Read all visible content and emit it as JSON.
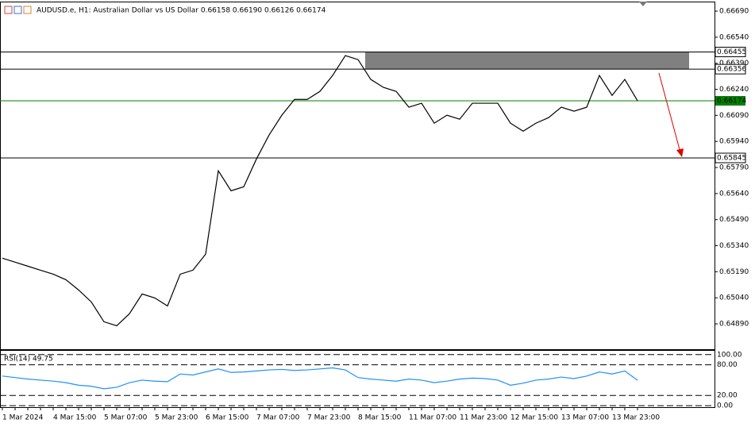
{
  "chart_data": [
    {
      "type": "line",
      "title": "AUDUSD.e, H1:  Australian Dollar vs US Dollar  0.66158 0.66190 0.66126 0.66174",
      "categories": [
        "1 Mar 2024",
        null,
        null,
        null,
        "4 Mar 15:00",
        null,
        null,
        null,
        "5 Mar 07:00",
        null,
        null,
        null,
        "5 Mar 23:00",
        null,
        null,
        null,
        "6 Mar 15:00",
        null,
        null,
        null,
        "7 Mar 07:00",
        null,
        null,
        null,
        "7 Mar 23:00",
        null,
        null,
        null,
        "8 Mar 15:00",
        null,
        null,
        null,
        "11 Mar 07:00",
        null,
        null,
        null,
        "11 Mar 23:00",
        null,
        null,
        null,
        "12 Mar 15:00",
        null,
        null,
        null,
        "13 Mar 07:00",
        null,
        null,
        null,
        "13 Mar 23:00",
        null,
        null
      ],
      "values": [
        0.65268,
        0.65245,
        0.65222,
        0.65199,
        0.65176,
        0.65144,
        0.65085,
        0.65016,
        0.64902,
        0.64879,
        0.64948,
        0.65062,
        0.65039,
        0.64993,
        0.65176,
        0.65199,
        0.65291,
        0.65771,
        0.65656,
        0.65679,
        0.65839,
        0.65977,
        0.66091,
        0.66182,
        0.66182,
        0.66228,
        0.6632,
        0.66434,
        0.66411,
        0.66297,
        0.66251,
        0.66228,
        0.66137,
        0.6616,
        0.66045,
        0.66091,
        0.66068,
        0.6616,
        0.6616,
        0.6616,
        0.66045,
        0.65999,
        0.66045,
        0.66077,
        0.66137,
        0.66114,
        0.66137,
        0.6632,
        0.66205,
        0.66297,
        0.66174
      ],
      "color": "#000000",
      "ylim": [
        0.64744,
        0.66745
      ],
      "yticks": [
        {
          "value": 0.6669,
          "label": "0.66690"
        },
        {
          "value": 0.6654,
          "label": "0.66540"
        },
        {
          "value": 0.6639,
          "label": "0.66390"
        },
        {
          "value": 0.6624,
          "label": "0.66240"
        },
        {
          "value": 0.6609,
          "label": "0.66090"
        },
        {
          "value": 0.6594,
          "label": "0.65940"
        },
        {
          "value": 0.6579,
          "label": "0.65790"
        },
        {
          "value": 0.6564,
          "label": "0.65640"
        },
        {
          "value": 0.6549,
          "label": "0.65490"
        },
        {
          "value": 0.6534,
          "label": "0.65340"
        },
        {
          "value": 0.6519,
          "label": "0.65190"
        },
        {
          "value": 0.6504,
          "label": "0.65040"
        },
        {
          "value": 0.6489,
          "label": "0.64890"
        }
      ],
      "levels": [
        {
          "value": 0.66455,
          "color": "#000000"
        },
        {
          "value": 0.66356,
          "color": "#000000"
        },
        {
          "value": 0.66174,
          "color": "#008000"
        },
        {
          "value": 0.65845,
          "color": "#000000"
        }
      ]
    },
    {
      "type": "line",
      "title": "RSI(14) 49.75",
      "values": [
        58,
        55,
        52,
        50,
        48,
        45,
        40,
        38,
        33,
        36,
        45,
        50,
        48,
        47,
        62,
        60,
        66,
        72,
        65,
        66,
        68,
        70,
        71,
        69,
        70,
        72,
        74,
        70,
        55,
        52,
        50,
        48,
        52,
        50,
        45,
        48,
        52,
        54,
        53,
        50,
        40,
        44,
        50,
        52,
        56,
        53,
        58,
        66,
        62,
        68,
        49.75
      ],
      "color": "#1e90ff",
      "ylim": [
        -3,
        109
      ],
      "yticks": [
        {
          "value": 100,
          "label": "100.00"
        },
        {
          "value": 80,
          "label": "80.00"
        },
        {
          "value": 20,
          "label": "20.00"
        },
        {
          "value": 0,
          "label": "0.00"
        }
      ]
    }
  ]
}
